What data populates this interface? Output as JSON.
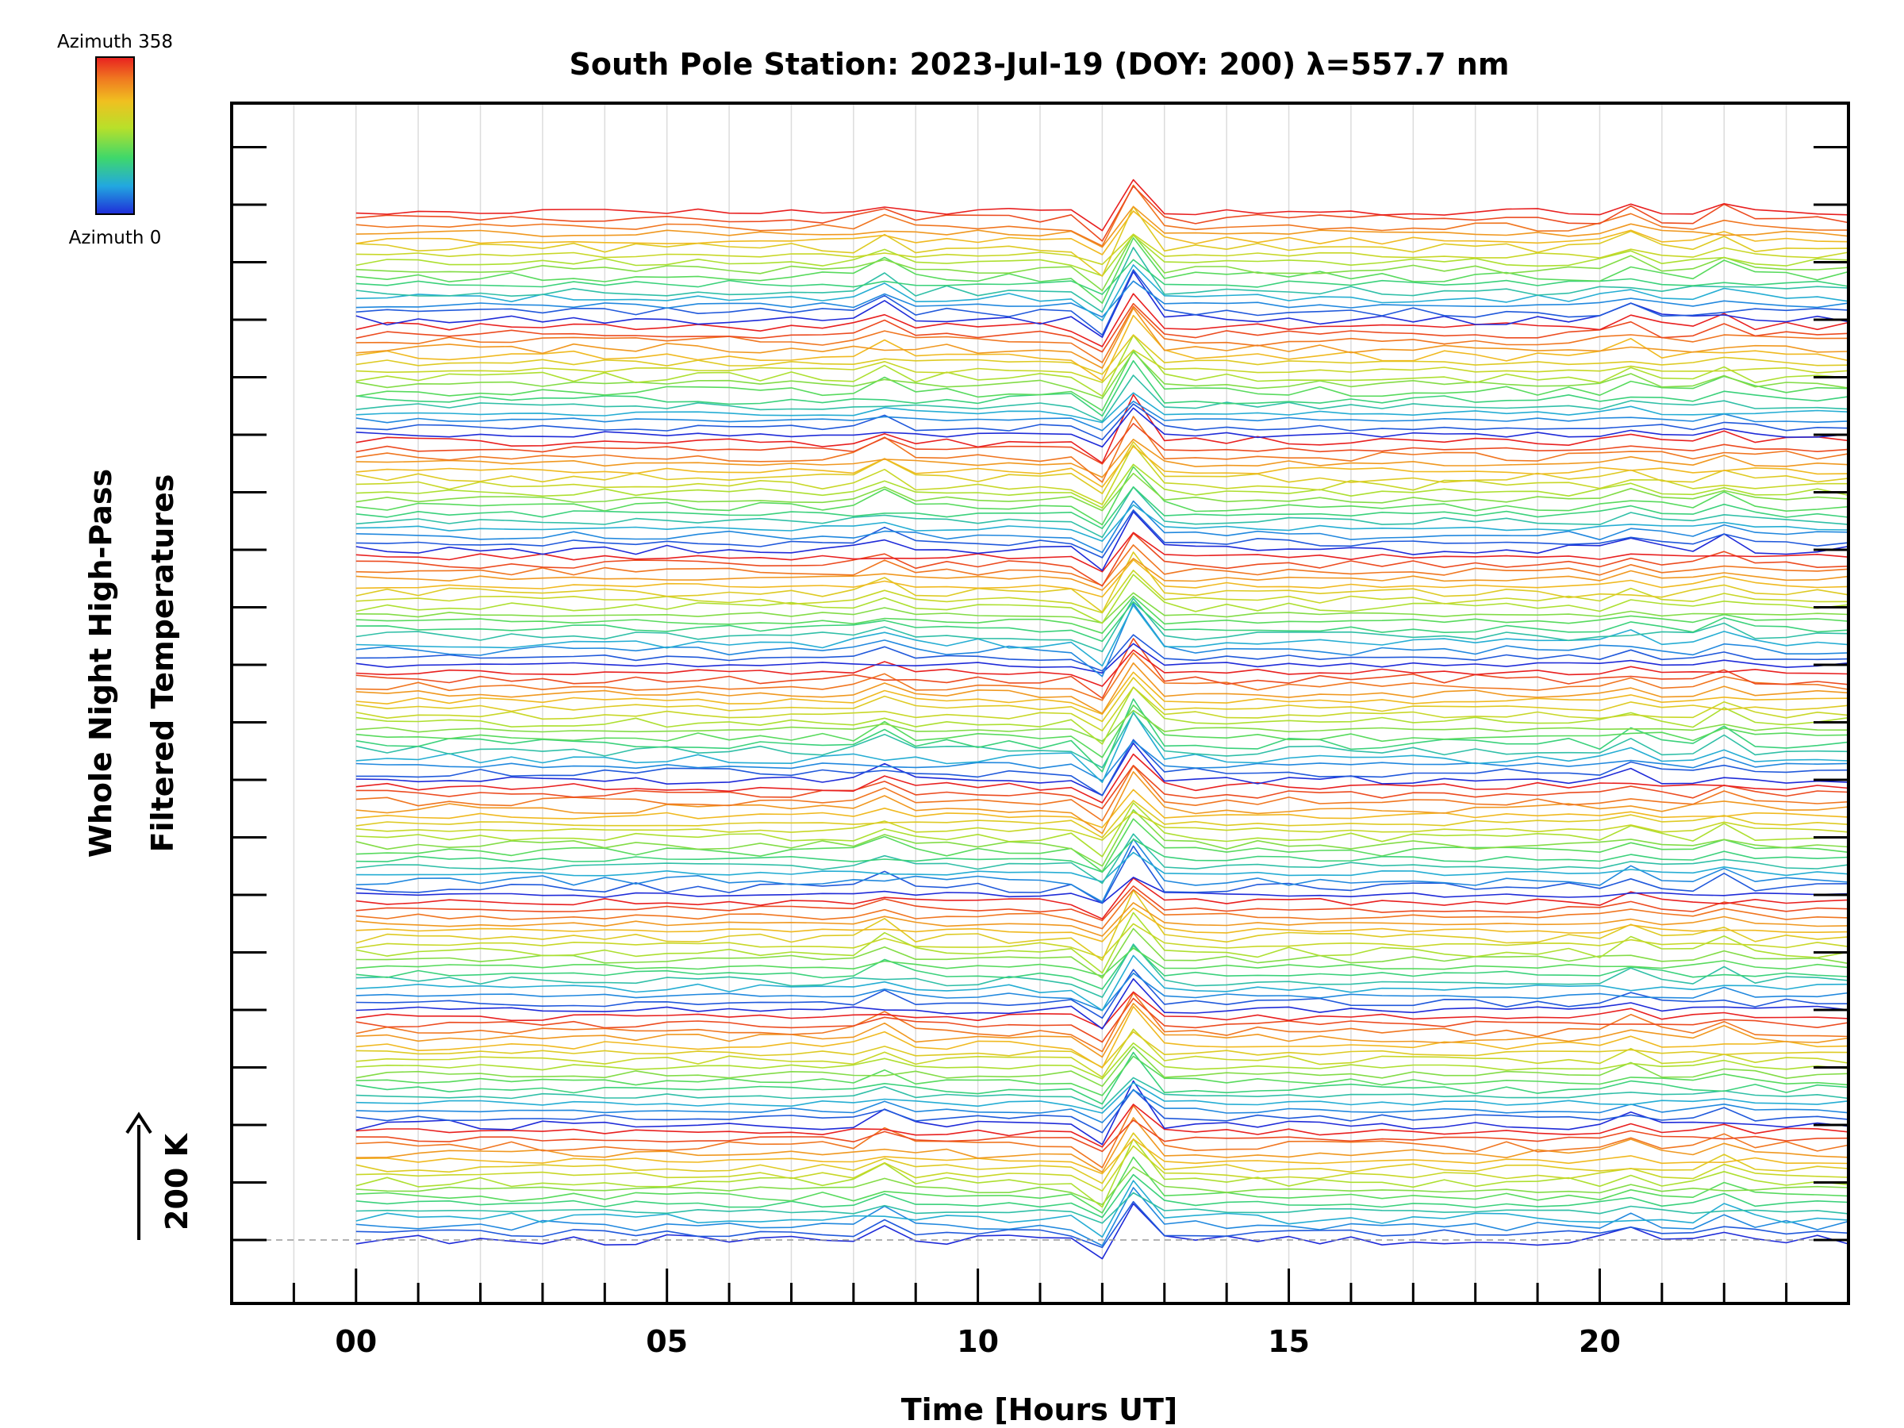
{
  "chart_data": {
    "type": "line",
    "title": "South Pole Station: 2023-Jul-19 (DOY: 200) λ=557.7 nm",
    "xlabel": "Time [Hours UT]",
    "ylabel_line1": "Whole Night High-Pass",
    "ylabel_line2": "Filtered Temperatures",
    "scale_label": "200 K",
    "xlim": [
      -2,
      24
    ],
    "x_ticks": [
      0,
      5,
      10,
      15,
      20
    ],
    "x_tick_labels": [
      "00",
      "05",
      "10",
      "15",
      "20"
    ],
    "x_minor_step": 1,
    "y_units": "K",
    "trace_spacing_K": 12.5,
    "trace_count": 144,
    "colorbar": {
      "top_label": "Azimuth 358",
      "bottom_label": "Azimuth 0",
      "range": [
        0,
        358
      ],
      "colormap": "rainbow",
      "colors": [
        "#1f2bd8",
        "#22c8d8",
        "#3fd86a",
        "#b8e02a",
        "#f0c020",
        "#f07a20",
        "#e82020"
      ]
    },
    "series_summary": {
      "x_start": 0,
      "x_end": 24,
      "sample_step_hours": 0.5,
      "common_peak_hour": 12.5,
      "common_dip_hour": 12.0,
      "secondary_peaks_hours": [
        8.5,
        20.6,
        22.1
      ],
      "azimuth_groups": 9
    }
  }
}
